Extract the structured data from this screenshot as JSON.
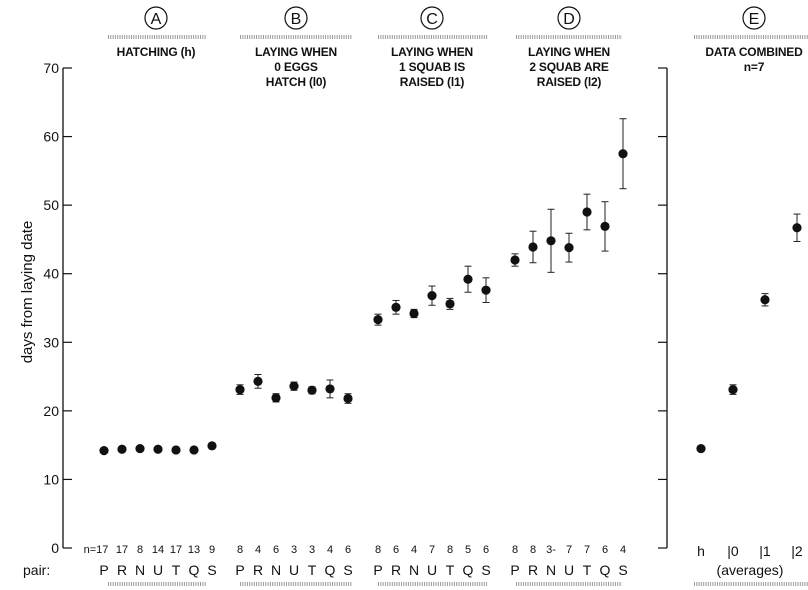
{
  "chart_data": {
    "type": "scatter",
    "ylabel": "days from laying date",
    "ylim": [
      0,
      70
    ],
    "yticks": [
      0,
      10,
      20,
      30,
      40,
      50,
      60,
      70
    ],
    "pair_row_label": "pair:",
    "error_bars": true,
    "panels": [
      {
        "id": "A",
        "title_lines": [
          "HATCHING (h)"
        ],
        "categories": [
          "P",
          "R",
          "N",
          "U",
          "T",
          "Q",
          "S"
        ],
        "n_labels": [
          "n=17",
          "17",
          "8",
          "14",
          "17",
          "13",
          "9"
        ],
        "values": [
          14.2,
          14.4,
          14.5,
          14.4,
          14.3,
          14.3,
          14.9
        ],
        "errors": [
          0,
          0,
          0,
          0,
          0,
          0,
          0
        ]
      },
      {
        "id": "B",
        "title_lines": [
          "LAYING WHEN",
          "0 EGGS",
          "HATCH (l0)"
        ],
        "categories": [
          "P",
          "R",
          "N",
          "U",
          "T",
          "Q",
          "S"
        ],
        "n_labels": [
          "8",
          "4",
          "6",
          "3",
          "3",
          "4",
          "6"
        ],
        "values": [
          23.1,
          24.3,
          21.9,
          23.6,
          23.0,
          23.2,
          21.8
        ],
        "errors": [
          0.7,
          1.0,
          0.6,
          0.6,
          0.5,
          1.3,
          0.7
        ]
      },
      {
        "id": "C",
        "title_lines": [
          "LAYING WHEN",
          "1 SQUAB IS",
          "RAISED (l1)"
        ],
        "categories": [
          "P",
          "R",
          "N",
          "U",
          "T",
          "Q",
          "S"
        ],
        "n_labels": [
          "8",
          "6",
          "4",
          "7",
          "8",
          "5",
          "6"
        ],
        "values": [
          33.3,
          35.1,
          34.2,
          36.8,
          35.6,
          39.2,
          37.6
        ],
        "errors": [
          0.8,
          1.0,
          0.6,
          1.4,
          0.8,
          1.9,
          1.8
        ]
      },
      {
        "id": "D",
        "title_lines": [
          "LAYING WHEN",
          "2 SQUAB ARE",
          "RAISED (l2)"
        ],
        "categories": [
          "P",
          "R",
          "N",
          "U",
          "T",
          "Q",
          "S"
        ],
        "n_labels": [
          "8",
          "8",
          "3-",
          "7",
          "7",
          "6",
          "4"
        ],
        "values": [
          42.0,
          43.9,
          44.8,
          43.8,
          49.0,
          46.9,
          57.5
        ],
        "errors": [
          0.9,
          2.3,
          4.6,
          2.1,
          2.6,
          3.6,
          5.1
        ]
      },
      {
        "id": "E",
        "title_lines": [
          "DATA COMBINED",
          "n=7"
        ],
        "categories": [
          "h",
          "l0",
          "l1",
          "l2"
        ],
        "category_labels": [
          "h",
          "|0",
          "|1",
          "|2"
        ],
        "bottom_label": "(averages)",
        "values": [
          14.5,
          23.1,
          36.2,
          46.7
        ],
        "errors": [
          0,
          0.7,
          0.9,
          2.0
        ]
      }
    ]
  }
}
